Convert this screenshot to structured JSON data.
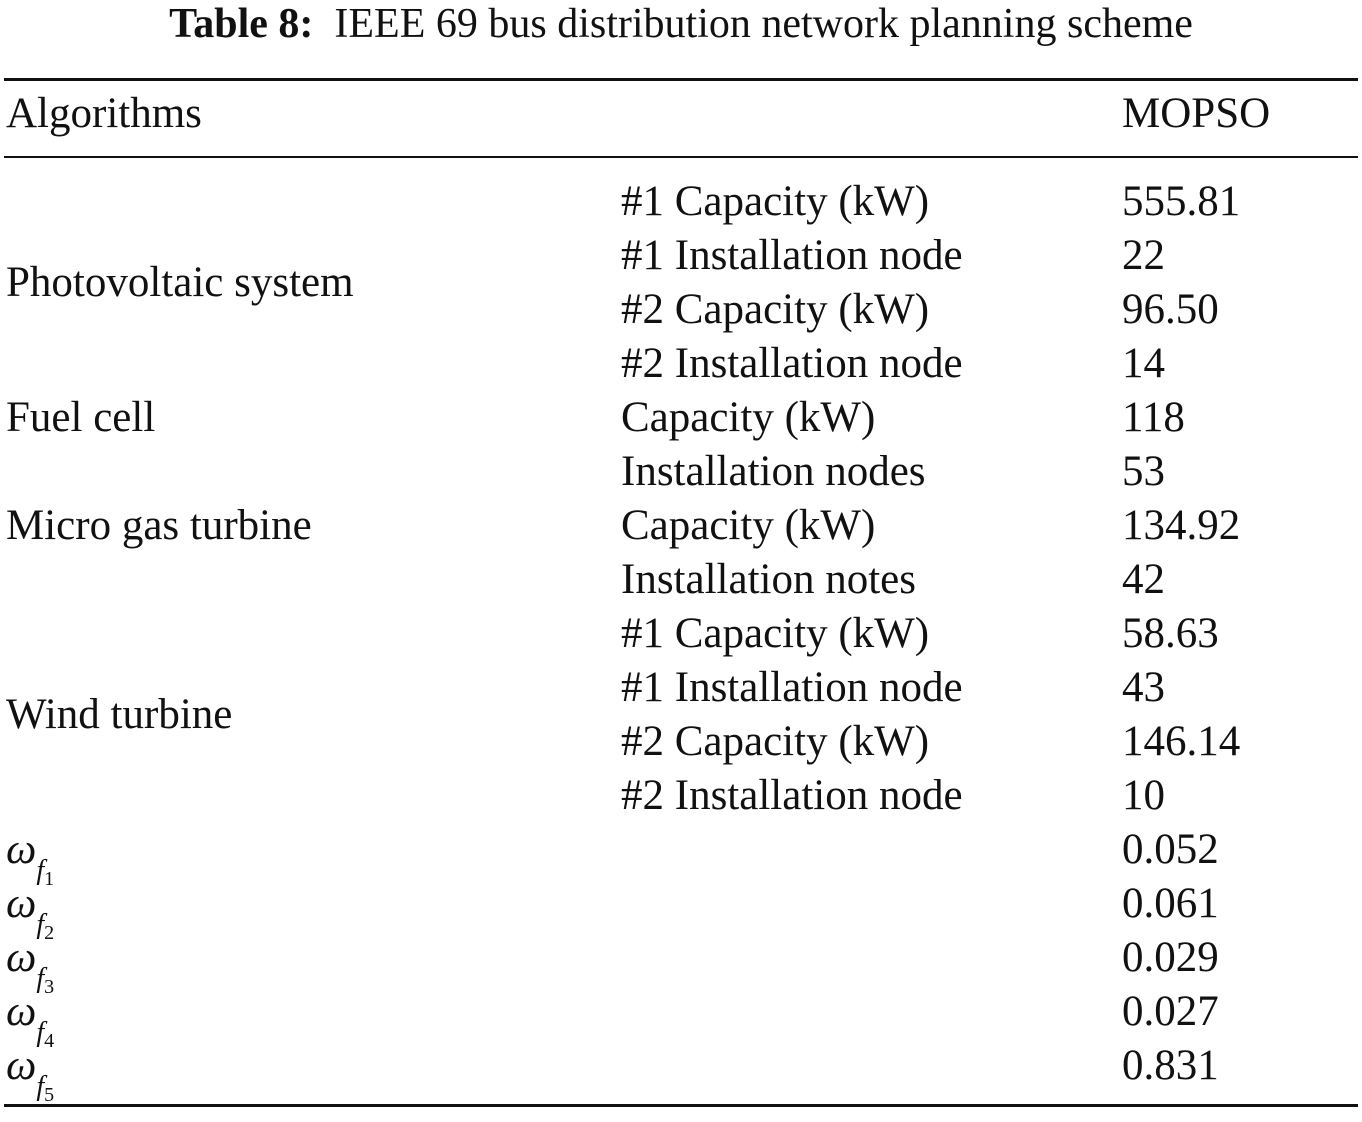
{
  "caption": {
    "label": "Table 8:",
    "text": "IEEE 69 bus distribution network planning scheme"
  },
  "header": {
    "col1": "Algorithms",
    "col3": "MOPSO"
  },
  "groups": [
    {
      "name": "Photovoltaic system",
      "rows": [
        {
          "param": "#1 Capacity (kW)",
          "value": "555.81"
        },
        {
          "param": "#1 Installation node",
          "value": "22"
        },
        {
          "param": "#2 Capacity (kW)",
          "value": "96.50"
        },
        {
          "param": "#2 Installation node",
          "value": "14"
        }
      ]
    },
    {
      "name": "Fuel cell",
      "rows": [
        {
          "param": "Capacity (kW)",
          "value": "118"
        },
        {
          "param": "Installation nodes",
          "value": "53"
        }
      ]
    },
    {
      "name": "Micro gas turbine",
      "rows": [
        {
          "param": "Capacity (kW)",
          "value": "134.92"
        },
        {
          "param": "Installation notes",
          "value": "42"
        }
      ]
    },
    {
      "name": "Wind turbine",
      "rows": [
        {
          "param": "#1 Capacity (kW)",
          "value": "58.63"
        },
        {
          "param": "#1 Installation node",
          "value": "43"
        },
        {
          "param": "#2 Capacity (kW)",
          "value": "146.14"
        },
        {
          "param": "#2 Installation node",
          "value": "10"
        }
      ]
    }
  ],
  "weights": [
    {
      "symbol": "ω",
      "sub": "f",
      "index": "1",
      "value": "0.052"
    },
    {
      "symbol": "ω",
      "sub": "f",
      "index": "2",
      "value": "0.061"
    },
    {
      "symbol": "ω",
      "sub": "f",
      "index": "3",
      "value": "0.029"
    },
    {
      "symbol": "ω",
      "sub": "f",
      "index": "4",
      "value": "0.027"
    },
    {
      "symbol": "ω",
      "sub": "f",
      "index": "5",
      "value": "0.831"
    }
  ]
}
